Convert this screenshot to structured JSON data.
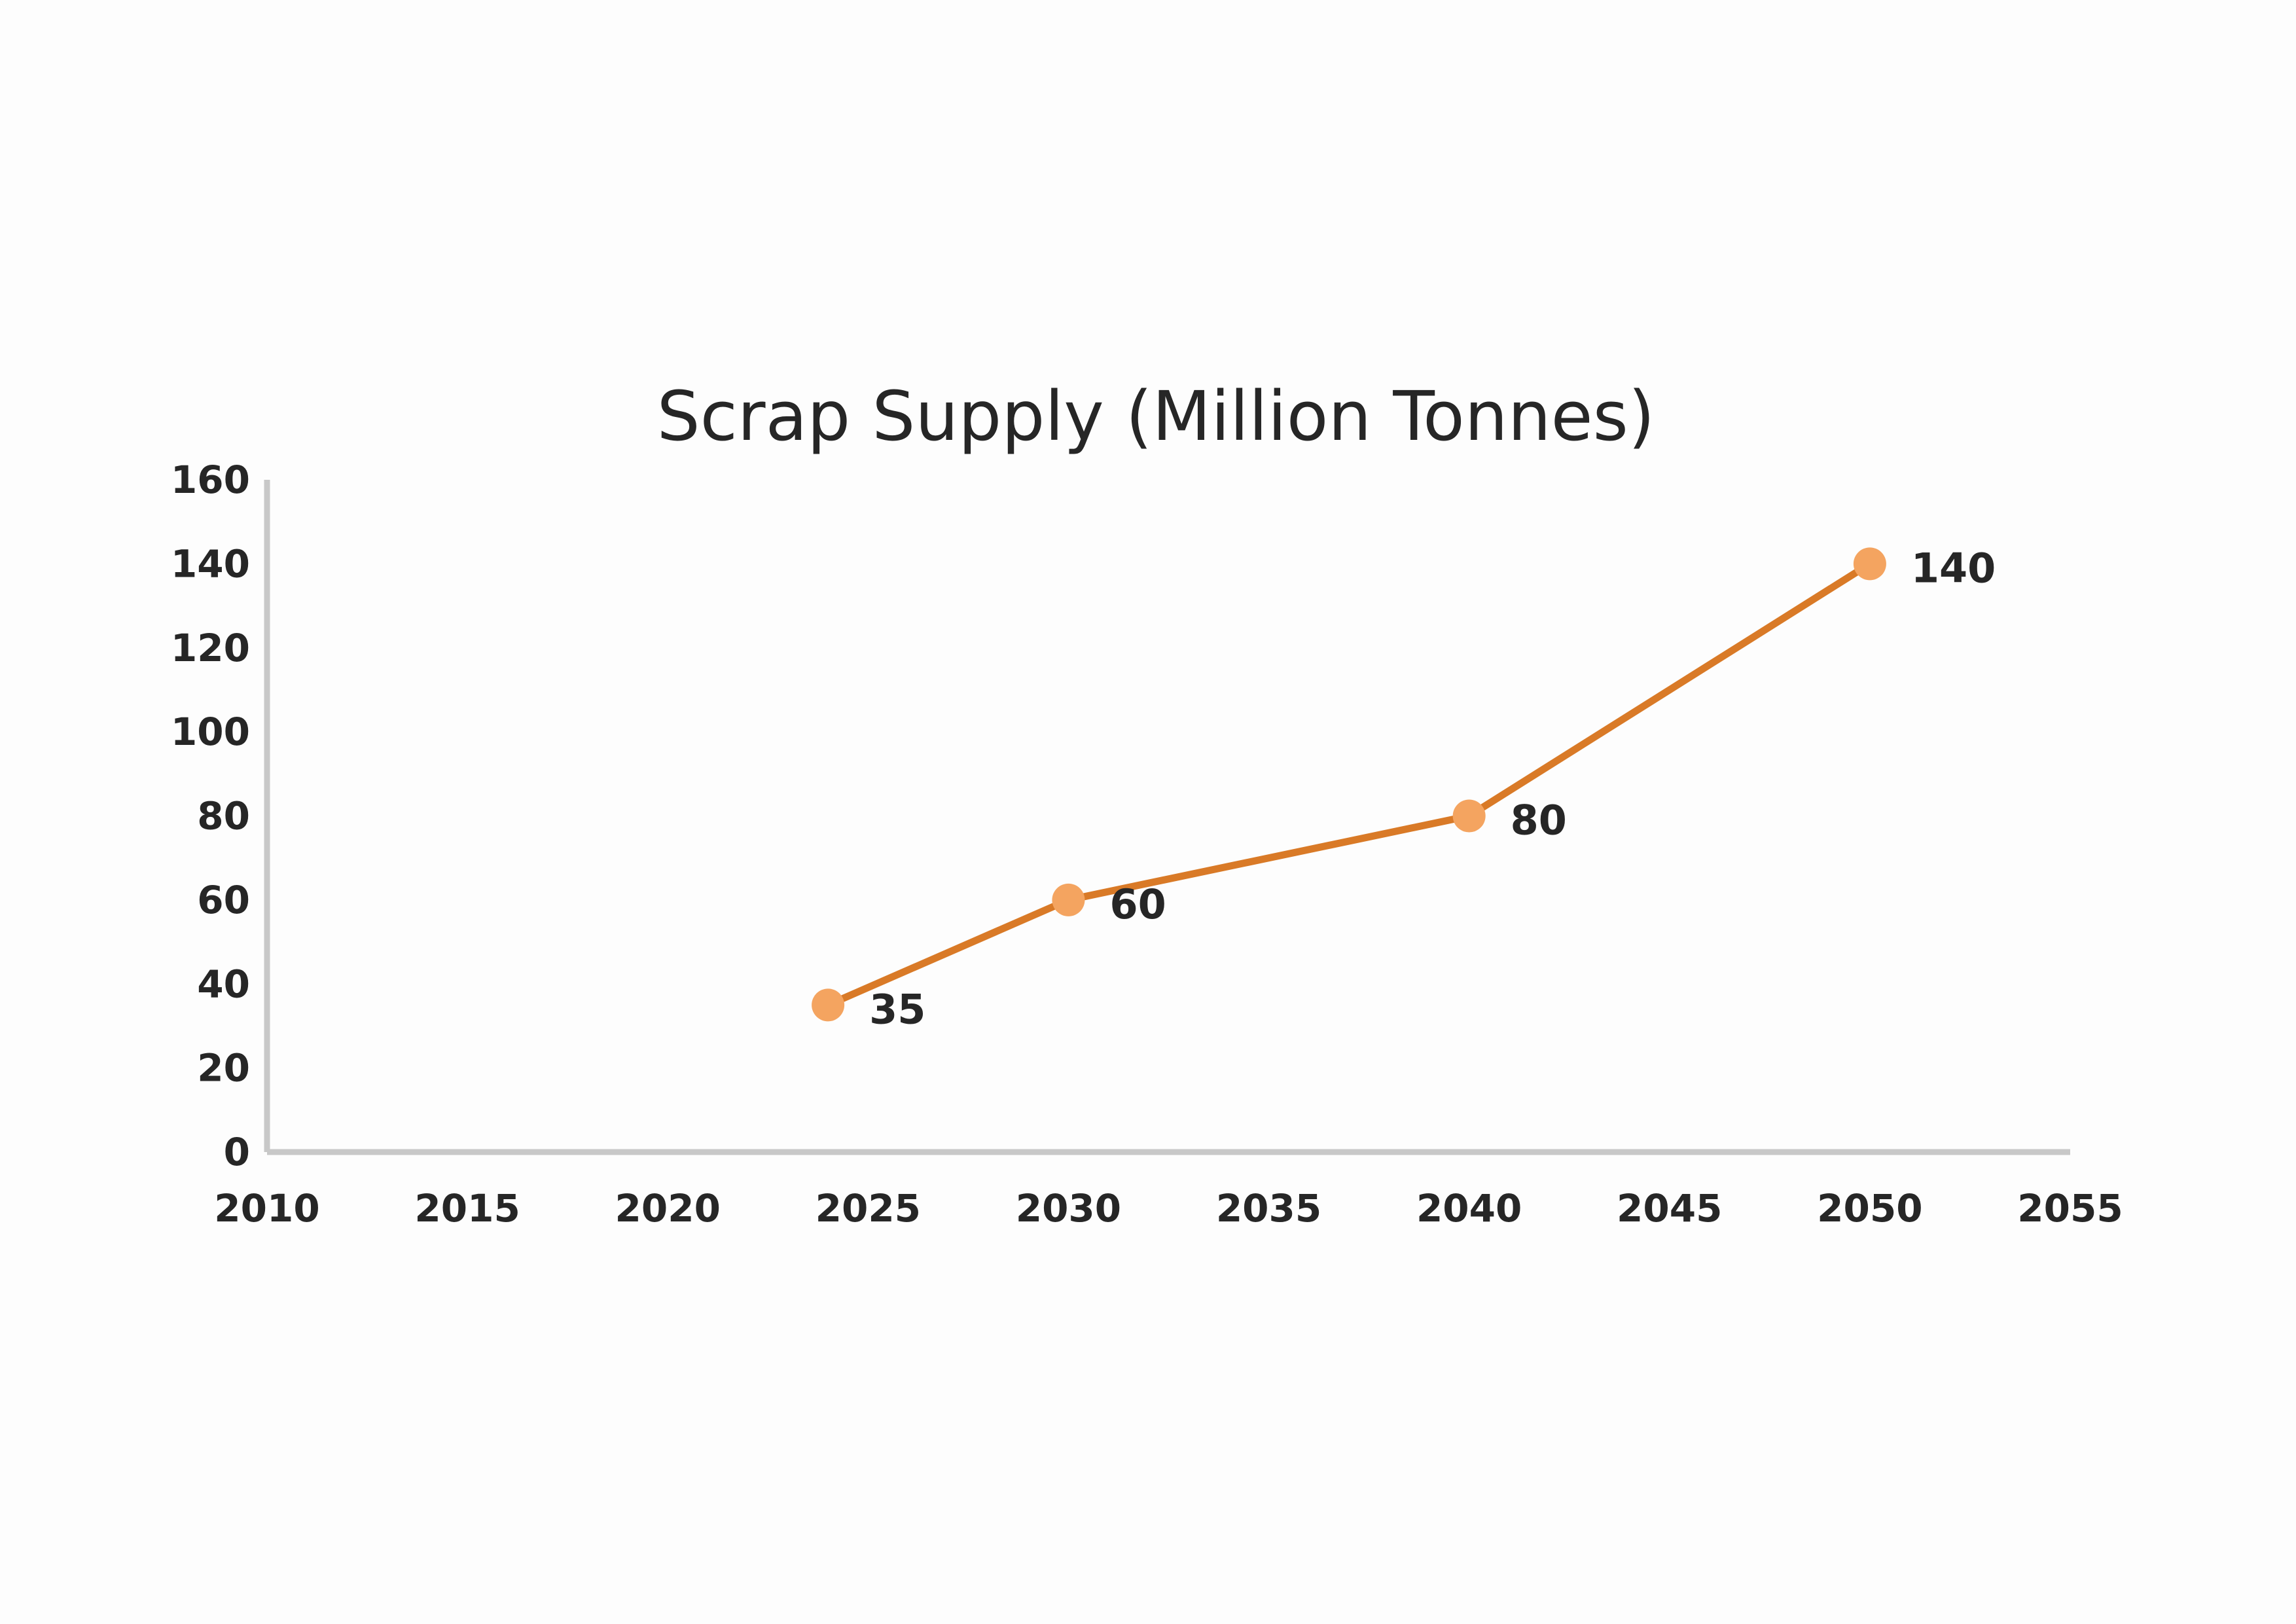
{
  "chart_data": {
    "type": "line",
    "title": "Scrap Supply (Million Tonnes)",
    "xlabel": "",
    "ylabel": "",
    "xlim": [
      2010,
      2055
    ],
    "ylim": [
      0,
      160
    ],
    "x_ticks": [
      2010,
      2015,
      2020,
      2025,
      2030,
      2035,
      2040,
      2045,
      2050,
      2055
    ],
    "y_ticks": [
      0,
      20,
      40,
      60,
      80,
      100,
      120,
      140,
      160
    ],
    "grid": false,
    "legend": "none",
    "series": [
      {
        "x": [
          2024,
          2030,
          2040,
          2050
        ],
        "y": [
          35,
          60,
          80,
          140
        ],
        "labels": [
          "35",
          "60",
          "80",
          "140"
        ],
        "line_color": "#d97a27",
        "marker_color": "#f4a460"
      }
    ],
    "axis_color": "#c8c8c8"
  }
}
